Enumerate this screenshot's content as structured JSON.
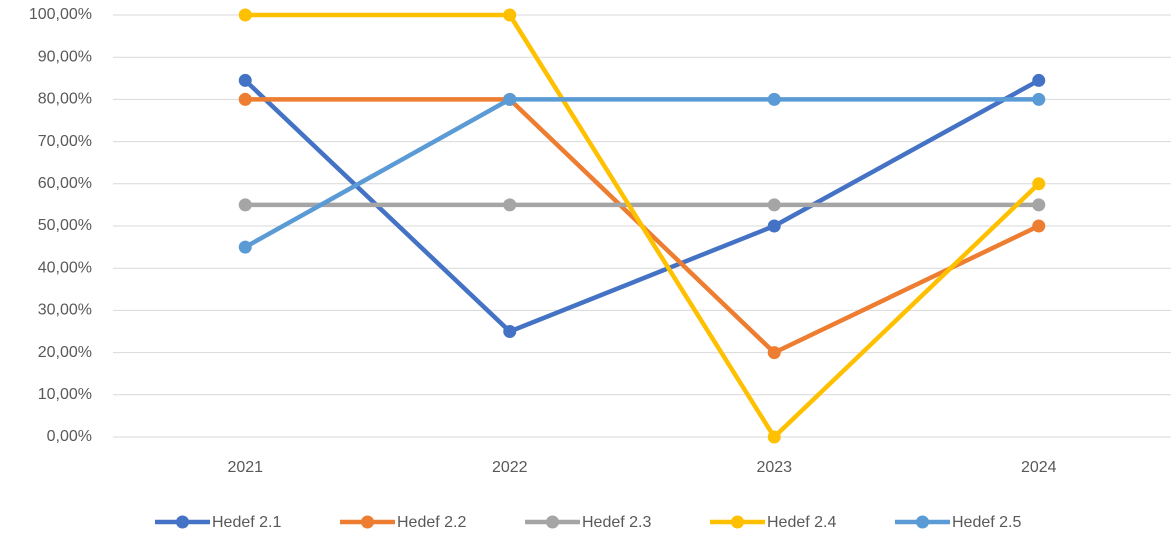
{
  "chart_data": {
    "type": "line",
    "categories": [
      "2021",
      "2022",
      "2023",
      "2024"
    ],
    "series": [
      {
        "name": "Hedef 2.1",
        "color": "#4472c4",
        "values": [
          84.5,
          25,
          50,
          84.5
        ]
      },
      {
        "name": "Hedef 2.2",
        "color": "#ed7d31",
        "values": [
          80,
          80,
          20,
          50
        ]
      },
      {
        "name": "Hedef 2.3",
        "color": "#a5a5a5",
        "values": [
          55,
          55,
          55,
          55
        ]
      },
      {
        "name": "Hedef 2.4",
        "color": "#ffc000",
        "values": [
          100,
          100,
          0,
          60
        ]
      },
      {
        "name": "Hedef 2.5",
        "color": "#5b9bd5",
        "values": [
          45,
          80,
          80,
          80
        ]
      }
    ],
    "ylim": [
      0,
      100
    ],
    "yticks": [
      {
        "value": 0,
        "label": "0,00%"
      },
      {
        "value": 10,
        "label": "10,00%"
      },
      {
        "value": 20,
        "label": "20,00%"
      },
      {
        "value": 30,
        "label": "30,00%"
      },
      {
        "value": 40,
        "label": "40,00%"
      },
      {
        "value": 50,
        "label": "50,00%"
      },
      {
        "value": 60,
        "label": "60,00%"
      },
      {
        "value": 70,
        "label": "70,00%"
      },
      {
        "value": 80,
        "label": "80,00%"
      },
      {
        "value": 90,
        "label": "90,00%"
      },
      {
        "value": 100,
        "label": "100,00%"
      }
    ],
    "grid": true,
    "legend": "bottom"
  }
}
